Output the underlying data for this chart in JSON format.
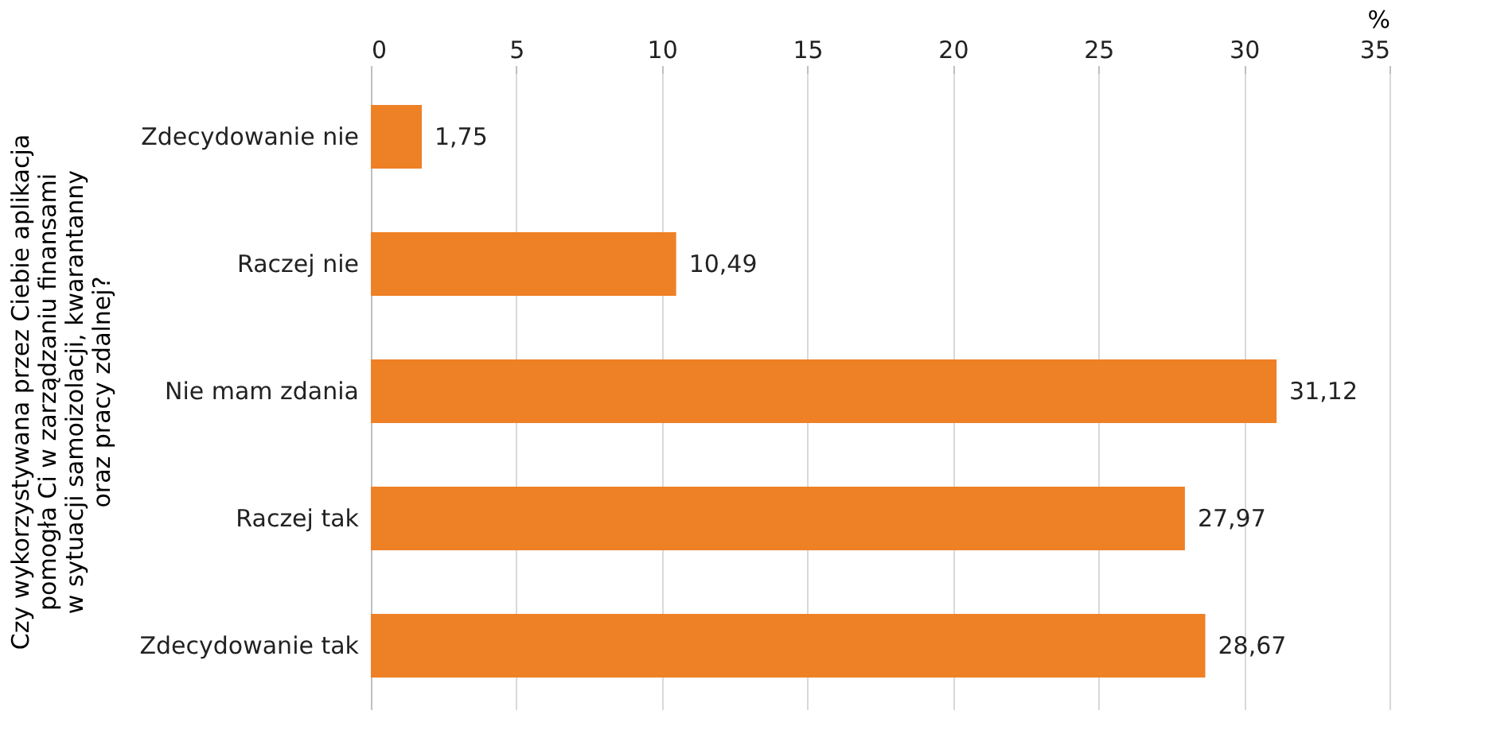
{
  "chart_data": {
    "type": "bar",
    "orientation": "horizontal",
    "xlabel": "%",
    "ylabel": "Czy wykorzystywana przez Ciebie aplikacja\npomogła Ci w zarządzaniu finansami\nw sytuacji samoizolacji, kwarantanny\noraz pracy zdalnej?",
    "categories": [
      "Zdecydowanie nie",
      "Raczej nie",
      "Nie mam zdania",
      "Raczej tak",
      "Zdecydowanie tak"
    ],
    "values": [
      1.75,
      10.49,
      31.12,
      27.97,
      28.67
    ],
    "value_labels": [
      "1,75",
      "10,49",
      "31,12",
      "27,97",
      "28,67"
    ],
    "color": "#ee8026",
    "xlim": [
      0,
      35
    ],
    "xticks": [
      0,
      5,
      10,
      15,
      20,
      25,
      30,
      35
    ],
    "grid": "x"
  }
}
